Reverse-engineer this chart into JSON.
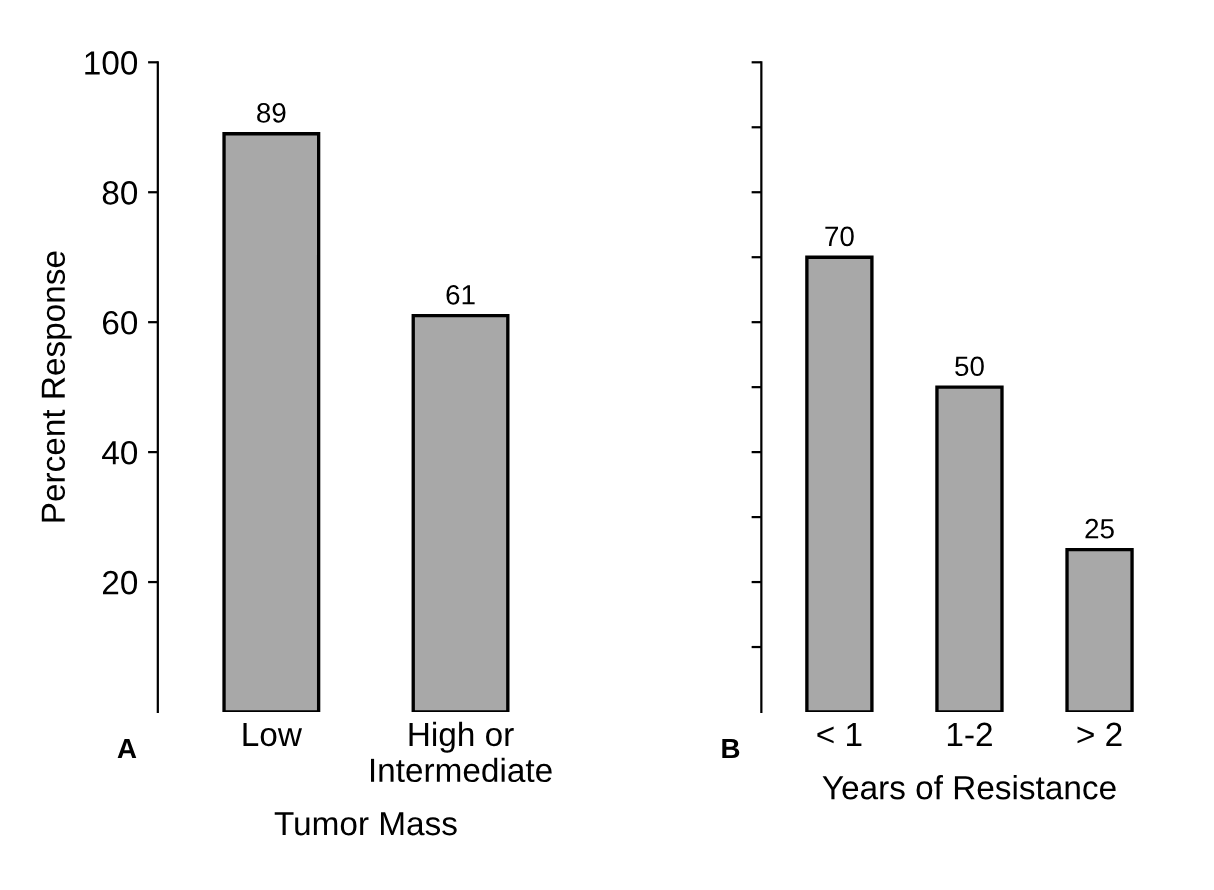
{
  "chart_data": [
    {
      "type": "bar",
      "xlabel": "Tumor Mass",
      "ylabel": "Percent Response",
      "categories": [
        "Low",
        "High or\nIntermediate"
      ],
      "values": [
        89,
        61
      ],
      "color": "#a8a8a8",
      "ylim": [
        0,
        100
      ],
      "yticks": [
        20,
        40,
        60,
        80,
        100
      ],
      "data_labels": true,
      "grid": false,
      "annotations": [
        "A"
      ]
    },
    {
      "type": "bar",
      "xlabel": "Years of Resistance",
      "categories": [
        "< 1",
        "1-2",
        "> 2"
      ],
      "values": [
        70,
        50,
        25
      ],
      "color": "#a8a8a8",
      "ylim": [
        0,
        100
      ],
      "yticks": [
        {
          "value": 10,
          "label": null
        },
        {
          "value": 20,
          "label": null
        },
        {
          "value": 30,
          "label": null
        },
        {
          "value": 40,
          "label": null
        },
        {
          "value": 50,
          "label": null
        },
        {
          "value": 60,
          "label": null
        },
        {
          "value": 70,
          "label": null
        },
        {
          "value": 80,
          "label": null
        },
        {
          "value": 90,
          "label": null
        },
        {
          "value": 100,
          "label": null
        }
      ],
      "tick_labels": "x",
      "data_labels": true,
      "grid": false,
      "annotations": [
        "B"
      ]
    }
  ]
}
